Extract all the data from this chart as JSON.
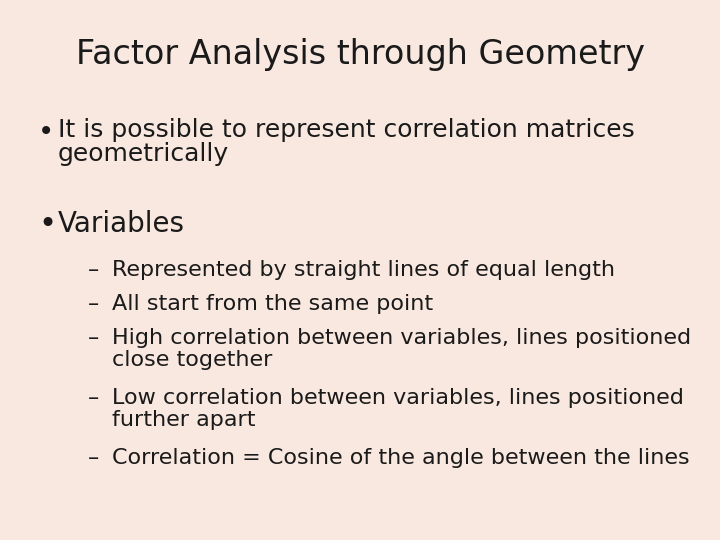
{
  "title": "Factor Analysis through Geometry",
  "background_color": "#f9e8e0",
  "title_fontsize": 24,
  "title_color": "#1a1a1a",
  "text_color": "#1a1a1a",
  "bullet1_line1": "It is possible to represent correlation matrices",
  "bullet1_line2": "geometrically",
  "bullet2": "Variables",
  "sub_bullets": [
    "Represented by straight lines of equal length",
    "All start from the same point",
    "High correlation between variables, lines positioned",
    "close together",
    "Low correlation between variables, lines positioned",
    "further apart",
    "Correlation = Cosine of the angle between the lines"
  ],
  "bullet_fontsize": 18,
  "sub_bullet_fontsize": 16,
  "fig_width": 7.2,
  "fig_height": 5.4,
  "dpi": 100
}
